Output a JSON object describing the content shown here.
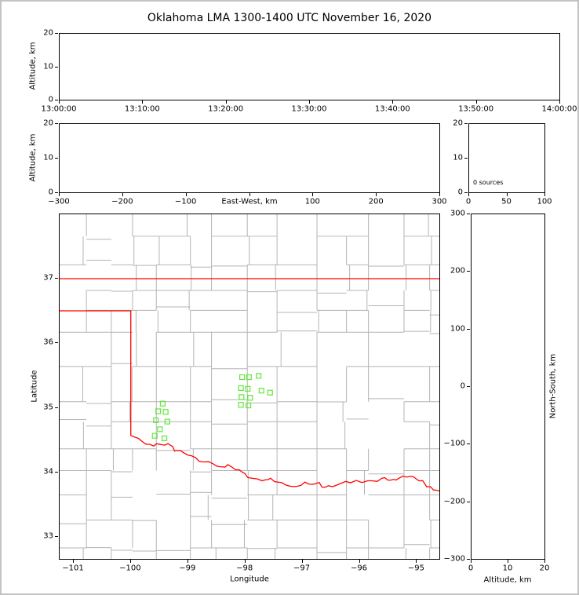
{
  "title": "Oklahoma LMA 1300-1400 UTC November 16, 2020",
  "panels": {
    "time_height": {
      "ylabel": "Altitude, km",
      "yticks": [
        0,
        10,
        20
      ],
      "xtick_labels": [
        "13:00:00",
        "13:10:00",
        "13:20:00",
        "13:30:00",
        "13:40:00",
        "13:50:00",
        "14:00:00"
      ]
    },
    "ew_height": {
      "ylabel": "Altitude, km",
      "xlabel": "East-West, km",
      "yticks": [
        0,
        10,
        20
      ],
      "xlim": [
        -300,
        300
      ],
      "xticks": [
        -300,
        -200,
        -100,
        0,
        100,
        200,
        300
      ],
      "xtick_labels": [
        "−300",
        "−200",
        "−100",
        "",
        "100",
        "200",
        "300"
      ]
    },
    "histogram": {
      "annotation": "0 sources",
      "yticks": [
        0,
        10,
        20
      ],
      "xlim": [
        0,
        100
      ],
      "xticks": [
        0,
        50,
        100
      ],
      "xtick_labels": [
        "0",
        "50",
        "100"
      ]
    },
    "map": {
      "xlabel": "Longitude",
      "ylabel": "Latitude",
      "lon_range": [
        -101.247,
        -94.594
      ],
      "lat_range": [
        32.647,
        38.0
      ],
      "xticks": [
        -101,
        -100,
        -99,
        -98,
        -97,
        -96,
        -95
      ],
      "xtick_labels": [
        "−101",
        "−100",
        "−99",
        "−98",
        "−97",
        "−96",
        "−95"
      ],
      "yticks": [
        33,
        34,
        35,
        36,
        37
      ],
      "ytick_labels": [
        "33",
        "34",
        "35",
        "36",
        "37"
      ]
    },
    "ns_height": {
      "xlabel": "Altitude, km",
      "ylabel": "North-South, km",
      "xlim": [
        0,
        20
      ],
      "xticks": [
        0,
        10,
        20
      ],
      "xtick_labels": [
        "0",
        "10",
        "20"
      ],
      "ylim": [
        -300,
        300
      ],
      "yticks": [
        300,
        200,
        100,
        0,
        -100,
        -200,
        -300
      ],
      "ytick_labels": [
        "300",
        "200",
        "100",
        "0",
        "−100",
        "−200",
        "−300"
      ]
    }
  },
  "colors": {
    "state_border": "#ff0000",
    "county_lines": "#b4b4b4",
    "stations": "#5fe83a",
    "axes": "#000000",
    "frame": "#c3c3c3",
    "background": "#ffffff"
  },
  "chart_data": {
    "type": "scatter",
    "title": "Oklahoma LMA 1300-1400 UTC November 16, 2020",
    "source_count": 0,
    "panels": [
      {
        "id": "altitude-vs-time",
        "ylabel": "Altitude, km",
        "ylim": [
          0,
          20
        ],
        "xticks": [
          "13:00:00",
          "13:10:00",
          "13:20:00",
          "13:30:00",
          "13:40:00",
          "13:50:00",
          "14:00:00"
        ],
        "points": []
      },
      {
        "id": "altitude-vs-eastwest",
        "xlabel": "East-West, km",
        "ylabel": "Altitude, km",
        "xlim": [
          -300,
          300
        ],
        "ylim": [
          0,
          20
        ],
        "points": []
      },
      {
        "id": "altitude-histogram",
        "annotation": "0 sources",
        "xlim": [
          0,
          100
        ],
        "ylim": [
          0,
          20
        ],
        "points": []
      },
      {
        "id": "map",
        "xlabel": "Longitude",
        "ylabel": "Latitude",
        "xlim": [
          -101.25,
          -94.59
        ],
        "ylim": [
          32.65,
          38.0
        ],
        "stations_lon_lat": [
          [
            -98.05,
            35.47
          ],
          [
            -97.93,
            35.47
          ],
          [
            -97.76,
            35.49
          ],
          [
            -98.07,
            35.3
          ],
          [
            -97.95,
            35.29
          ],
          [
            -97.71,
            35.26
          ],
          [
            -97.56,
            35.23
          ],
          [
            -98.06,
            35.16
          ],
          [
            -97.91,
            35.15
          ],
          [
            -98.07,
            35.04
          ],
          [
            -97.94,
            35.03
          ],
          [
            -99.44,
            35.06
          ],
          [
            -99.52,
            34.94
          ],
          [
            -99.39,
            34.93
          ],
          [
            -99.56,
            34.8
          ],
          [
            -99.36,
            34.78
          ],
          [
            -99.49,
            34.66
          ],
          [
            -99.58,
            34.56
          ],
          [
            -99.41,
            34.52
          ]
        ],
        "state_border": {
          "north_lat": 37.0,
          "panhandle_south_lat": 36.5,
          "west_border_lon": -100.0,
          "red_river_lon_lat": [
            [
              -100.0,
              34.563
            ],
            [
              -99.8,
              34.47
            ],
            [
              -99.6,
              34.4
            ],
            [
              -99.45,
              34.42
            ],
            [
              -99.3,
              34.41
            ],
            [
              -99.2,
              34.33
            ],
            [
              -99.0,
              34.26
            ],
            [
              -98.8,
              34.16
            ],
            [
              -98.55,
              34.12
            ],
            [
              -98.45,
              34.08
            ],
            [
              -98.3,
              34.11
            ],
            [
              -98.1,
              34.03
            ],
            [
              -97.95,
              33.91
            ],
            [
              -97.7,
              33.86
            ],
            [
              -97.55,
              33.9
            ],
            [
              -97.35,
              33.83
            ],
            [
              -97.15,
              33.77
            ],
            [
              -96.95,
              33.84
            ],
            [
              -96.75,
              33.82
            ],
            [
              -96.6,
              33.76
            ],
            [
              -96.4,
              33.79
            ],
            [
              -96.15,
              33.83
            ],
            [
              -95.85,
              33.86
            ],
            [
              -95.6,
              33.9
            ],
            [
              -95.45,
              33.87
            ],
            [
              -95.3,
              33.9
            ],
            [
              -95.1,
              33.93
            ],
            [
              -94.95,
              33.86
            ],
            [
              -94.75,
              33.77
            ],
            [
              -94.59,
              33.7
            ]
          ]
        }
      },
      {
        "id": "altitude-vs-northsouth",
        "xlabel": "Altitude, km",
        "ylabel": "North-South, km",
        "xlim": [
          0,
          20
        ],
        "ylim": [
          -300,
          300
        ],
        "points": []
      }
    ]
  }
}
